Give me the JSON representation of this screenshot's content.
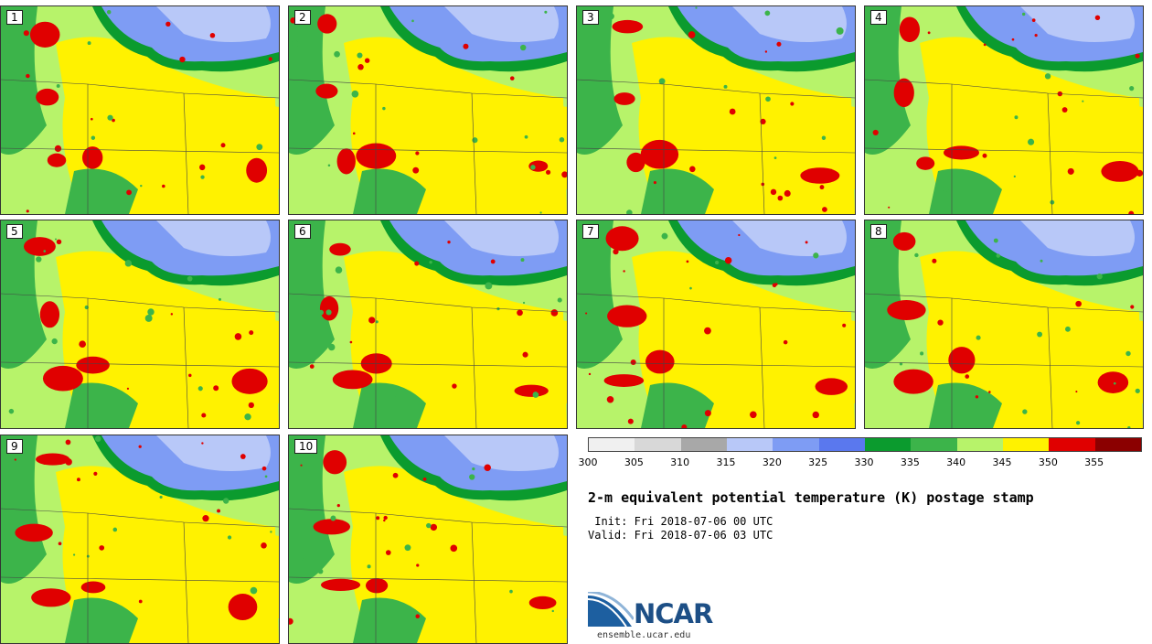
{
  "panels": [
    {
      "label": "1"
    },
    {
      "label": "2"
    },
    {
      "label": "3"
    },
    {
      "label": "4"
    },
    {
      "label": "5"
    },
    {
      "label": "6"
    },
    {
      "label": "7"
    },
    {
      "label": "8"
    },
    {
      "label": "9"
    },
    {
      "label": "10"
    }
  ],
  "legend": {
    "colors": [
      "#f0f0f0",
      "#d8d8d8",
      "#a8a8a8",
      "#b8c8f8",
      "#7e9cf4",
      "#5a78ee",
      "#0b9b2e",
      "#3cb44a",
      "#b7f36a",
      "#fff200",
      "#e00000",
      "#8b0000"
    ],
    "ticks": [
      "300",
      "305",
      "310",
      "315",
      "320",
      "325",
      "330",
      "335",
      "340",
      "345",
      "350",
      "355"
    ]
  },
  "title": "2-m equivalent potential temperature (K) postage stamp",
  "init": " Init: Fri 2018-07-06 00 UTC",
  "valid": "Valid: Fri 2018-07-06 03 UTC",
  "logo_text": "NCAR",
  "url": "ensemble.ucar.edu"
}
